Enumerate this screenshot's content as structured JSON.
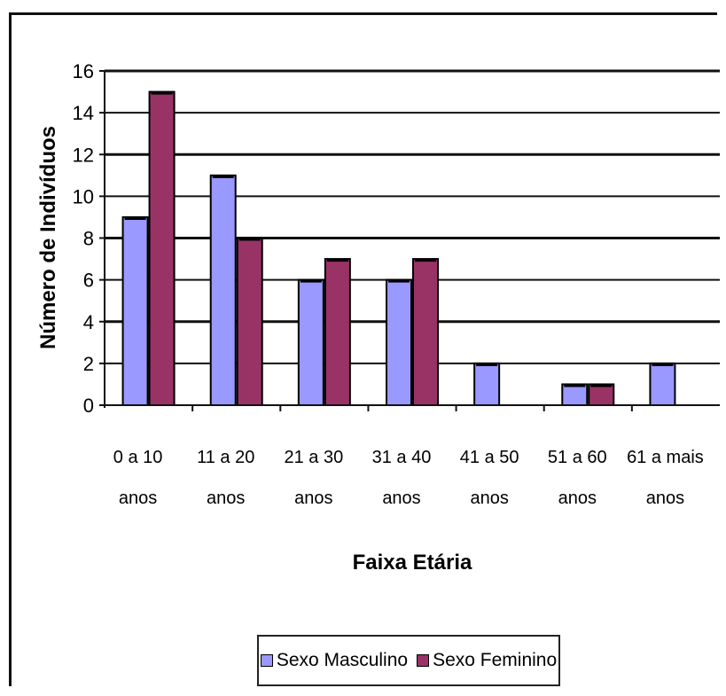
{
  "chart_data": {
    "type": "bar",
    "title": "",
    "xlabel": "Faixa Etária",
    "ylabel": "Número de Indivíduos",
    "ylim": [
      0,
      16
    ],
    "yticks": [
      0,
      2,
      4,
      6,
      8,
      10,
      12,
      14,
      16
    ],
    "grid": true,
    "legend_position": "bottom",
    "categories": [
      [
        "0 a 10",
        "anos"
      ],
      [
        "11 a 20",
        "anos"
      ],
      [
        "21 a 30",
        "anos"
      ],
      [
        "31 a 40",
        "anos"
      ],
      [
        "41 a 50",
        "anos"
      ],
      [
        "51 a 60",
        "anos"
      ],
      [
        "61 a mais",
        "anos"
      ]
    ],
    "series": [
      {
        "name": "Sexo Masculino",
        "color": "#9999ff",
        "values": [
          9,
          11,
          6,
          6,
          2,
          1,
          2
        ]
      },
      {
        "name": "Sexo Feminino",
        "color": "#993366",
        "values": [
          15,
          8,
          7,
          7,
          0,
          1,
          0
        ]
      }
    ]
  }
}
